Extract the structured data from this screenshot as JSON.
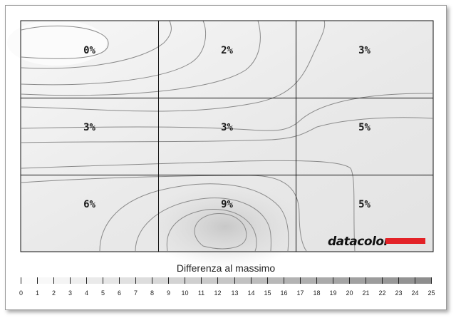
{
  "chart_data": {
    "type": "heatmap",
    "rows": 3,
    "cols": 3,
    "values": [
      [
        0,
        2,
        3
      ],
      [
        3,
        3,
        5
      ],
      [
        6,
        9,
        5
      ]
    ],
    "labels": [
      [
        "0%",
        "2%",
        "3%"
      ],
      [
        "3%",
        "3%",
        "5%"
      ],
      [
        "6%",
        "9%",
        "5%"
      ]
    ],
    "legend_title": "Differenza al massimo",
    "legend_ticks": [
      "0",
      "1",
      "2",
      "3",
      "4",
      "5",
      "6",
      "7",
      "8",
      "9",
      "10",
      "11",
      "12",
      "13",
      "14",
      "15",
      "16",
      "17",
      "18",
      "19",
      "20",
      "21",
      "22",
      "23",
      "24",
      "25"
    ],
    "legend_range": [
      0,
      25
    ],
    "brand": "datacolor",
    "colors": {
      "brand_bar": "#e32227",
      "grid": "#111111",
      "contour": "#8a8a8a",
      "low": "#ffffff",
      "high": "#8c8c8c"
    }
  }
}
